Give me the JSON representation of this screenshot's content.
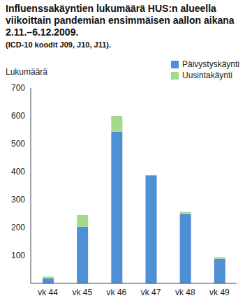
{
  "chart_data": {
    "type": "bar",
    "title": "Influenssakäyntien lukumäärä HUS:n alueella viikoittain pandemian ensimmäisen aallon aikana 2.11.–6.12.2009.",
    "subtitle": "(ICD-10 koodit J09, J10, J11).",
    "y_label": "Lukumäärä",
    "categories": [
      "vk 44",
      "vk 45",
      "vk 46",
      "vk 47",
      "vk 48",
      "vk 49"
    ],
    "series": [
      {
        "name": "Päivystyskäynti",
        "color": "#4f8fd6",
        "values": [
          18,
          203,
          543,
          387,
          248,
          88
        ]
      },
      {
        "name": "Uusintakäynti",
        "color": "#a6d88a",
        "values": [
          6,
          42,
          57,
          0,
          8,
          6
        ]
      }
    ],
    "stacked": true,
    "ylim": [
      0,
      700
    ],
    "yticks": [
      100,
      200,
      300,
      400,
      500,
      600,
      700
    ],
    "grid": false,
    "legend": "upper right"
  }
}
